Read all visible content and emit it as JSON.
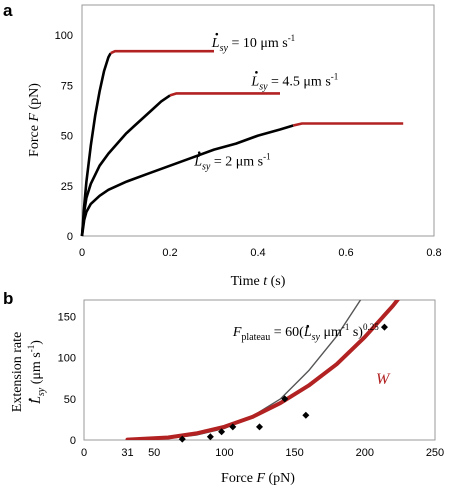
{
  "chart_data": [
    {
      "panel": "a",
      "type": "line",
      "xlabel": {
        "prefix": "Time ",
        "var": "t",
        "suffix": " (s)"
      },
      "ylabel": {
        "prefix": "Force ",
        "var": "F",
        "suffix": " (pN)"
      },
      "xlim": [
        0,
        0.8
      ],
      "ylim": [
        0,
        115
      ],
      "xticks": [
        0,
        0.2,
        0.4,
        0.6,
        0.8
      ],
      "xtick_labels": [
        "0",
        "0.2",
        "0.4",
        "0.6",
        "0.8"
      ],
      "yticks": [
        0,
        25,
        50,
        75,
        100
      ],
      "ytick_labels": [
        "0",
        "25",
        "50",
        "75",
        "100"
      ],
      "grid": false,
      "series": [
        {
          "rate": "10",
          "color": "#000000",
          "rising": [
            [
              0,
              0
            ],
            [
              0.005,
              15
            ],
            [
              0.01,
              27
            ],
            [
              0.02,
              45
            ],
            [
              0.03,
              60
            ],
            [
              0.04,
              72
            ],
            [
              0.05,
              82
            ],
            [
              0.06,
              89
            ],
            [
              0.065,
              91
            ]
          ],
          "plateau_color": "#b22222",
          "plateau": [
            [
              0.065,
              91
            ],
            [
              0.075,
              92
            ],
            [
              0.3,
              92
            ]
          ]
        },
        {
          "rate": "4.5",
          "color": "#000000",
          "rising": [
            [
              0,
              0
            ],
            [
              0.005,
              12
            ],
            [
              0.01,
              19
            ],
            [
              0.02,
              26
            ],
            [
              0.04,
              35
            ],
            [
              0.06,
              41
            ],
            [
              0.08,
              46
            ],
            [
              0.1,
              51
            ],
            [
              0.12,
              55
            ],
            [
              0.14,
              59
            ],
            [
              0.16,
              63
            ],
            [
              0.18,
              67
            ],
            [
              0.2,
              70
            ]
          ],
          "plateau_color": "#b22222",
          "plateau": [
            [
              0.2,
              70
            ],
            [
              0.215,
              71
            ],
            [
              0.45,
              71
            ]
          ]
        },
        {
          "rate": "2",
          "color": "#000000",
          "rising": [
            [
              0,
              0
            ],
            [
              0.005,
              8
            ],
            [
              0.01,
              12
            ],
            [
              0.02,
              16
            ],
            [
              0.04,
              20
            ],
            [
              0.06,
              23
            ],
            [
              0.1,
              27
            ],
            [
              0.15,
              31
            ],
            [
              0.2,
              35
            ],
            [
              0.25,
              39
            ],
            [
              0.3,
              43
            ],
            [
              0.35,
              46
            ],
            [
              0.4,
              50
            ],
            [
              0.45,
              53
            ],
            [
              0.48,
              55
            ]
          ],
          "plateau_color": "#b22222",
          "plateau": [
            [
              0.48,
              55
            ],
            [
              0.5,
              56
            ],
            [
              0.73,
              56
            ]
          ]
        }
      ],
      "annotations": [
        {
          "symbol": "L",
          "sub": "sy",
          "value_text": " = 10 μm s",
          "sup": "-1",
          "at": [
            0.295,
            94
          ]
        },
        {
          "symbol": "L",
          "sub": "sy",
          "value_text": " = 4.5 μm s",
          "sup": "-1",
          "at": [
            0.385,
            75
          ]
        },
        {
          "symbol": "L",
          "sub": "sy",
          "value_text": " = 2 μm s",
          "sup": "-1",
          "at": [
            0.255,
            35
          ]
        }
      ]
    },
    {
      "panel": "b",
      "type": "scatter",
      "xlabel": {
        "prefix": "Force ",
        "var": "F",
        "suffix": " (pN)"
      },
      "ylabel": {
        "line1": "Extension rate",
        "symbol": "L",
        "sub": "sy",
        "unit_open": " (μm s",
        "unit_sup": "-1",
        "unit_close": ")"
      },
      "xlim": [
        0,
        250
      ],
      "ylim": [
        0,
        170
      ],
      "xticks": [
        0,
        31,
        50,
        100,
        150,
        200,
        250
      ],
      "xtick_labels": [
        "0",
        "31",
        "50",
        "100",
        "150",
        "200",
        "250"
      ],
      "yticks": [
        0,
        50,
        100,
        150
      ],
      "ytick_labels": [
        "0",
        "50",
        "100",
        "150"
      ],
      "grid": false,
      "points": [
        [
          70,
          1
        ],
        [
          90,
          4
        ],
        [
          98,
          10
        ],
        [
          106,
          16
        ],
        [
          125,
          16
        ],
        [
          143,
          50
        ],
        [
          158,
          30
        ],
        [
          214,
          137
        ]
      ],
      "point_color": "#000000",
      "curves": [
        {
          "label": "fit",
          "color": "#555555",
          "samples": [
            [
              33,
              0.3
            ],
            [
              60,
              2
            ],
            [
              80,
              6
            ],
            [
              100,
              14
            ],
            [
              120,
              29
            ],
            [
              140,
              50
            ],
            [
              160,
              84
            ],
            [
              180,
              126
            ],
            [
              200,
              178
            ]
          ]
        },
        {
          "label": "W",
          "color": "#b22222",
          "samples": [
            [
              31,
              0.5
            ],
            [
              60,
              3
            ],
            [
              80,
              8
            ],
            [
              100,
              16
            ],
            [
              120,
              28
            ],
            [
              140,
              45
            ],
            [
              160,
              66
            ],
            [
              180,
              92
            ],
            [
              200,
              125
            ],
            [
              220,
              163
            ],
            [
              226,
              176
            ]
          ]
        }
      ],
      "equation": {
        "lhs": "F",
        "lhs_sub": "plateau",
        "eq": " = 60(",
        "symbol": "L",
        "sub": "sy",
        "unit": " μm",
        "unit_sup": "-1",
        "unit_tail": " s)",
        "exp": "0.25",
        "at": [
          106,
          126
        ]
      },
      "w_label": {
        "text": "W",
        "at": [
          208,
          68
        ]
      }
    }
  ]
}
